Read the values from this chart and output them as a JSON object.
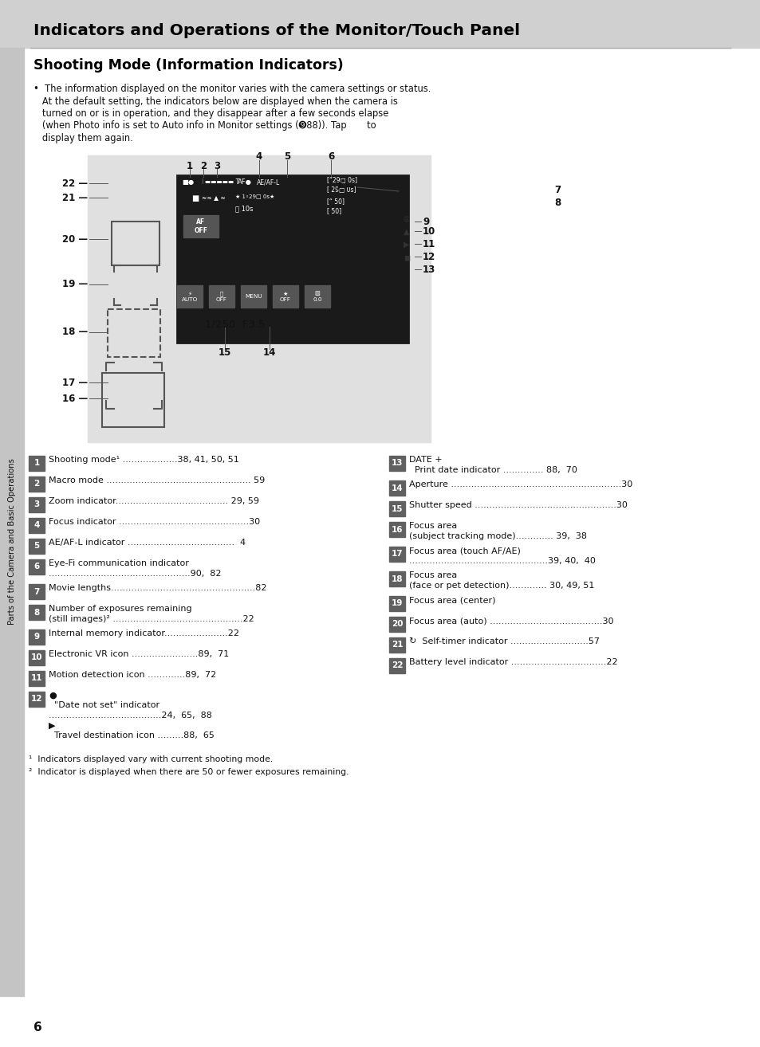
{
  "page_bg": "#ffffff",
  "header_bg": "#d0d0d0",
  "header_title": "Indicators and Operations of the Monitor/Touch Panel",
  "section_title": "Shooting Mode (Information Indicators)",
  "sidebar_text": "Parts of the Camera and Basic Operations",
  "indicator_box_bg": "#606060",
  "indicator_text_color": "#ffffff",
  "page_number": "6",
  "left_items": [
    {
      "num": "1",
      "lines": [
        "Shooting mode¹ ...................38, 41, 50, 51"
      ]
    },
    {
      "num": "2",
      "lines": [
        "Macro mode .................................................. 59"
      ]
    },
    {
      "num": "3",
      "lines": [
        "Zoom indicator....................................... 29, 59"
      ]
    },
    {
      "num": "4",
      "lines": [
        "Focus indicator .............................................30"
      ]
    },
    {
      "num": "5",
      "lines": [
        "AE/AF-L indicator .....................................  4"
      ]
    },
    {
      "num": "6",
      "lines": [
        "Eye-Fi communication indicator",
        ".................................................90,  82"
      ]
    },
    {
      "num": "7",
      "lines": [
        "Movie lengths..................................................82"
      ]
    },
    {
      "num": "8",
      "lines": [
        "Number of exposures remaining",
        "(still images)² .............................................22"
      ]
    },
    {
      "num": "9",
      "lines": [
        "Internal memory indicator......................22"
      ]
    },
    {
      "num": "10",
      "lines": [
        "Electronic VR icon .......................89,  71"
      ]
    },
    {
      "num": "11",
      "lines": [
        "Motion detection icon .............89,  72"
      ]
    },
    {
      "num": "12",
      "lines": [
        "●",
        "  \"Date not set\" indicator",
        ".......................................24,  65,  88",
        "▶",
        "  Travel destination icon .........88,  65"
      ]
    }
  ],
  "right_items": [
    {
      "num": "13",
      "lines": [
        "DATE +",
        "  Print date indicator .............. 88,  70"
      ]
    },
    {
      "num": "14",
      "lines": [
        "Aperture ...........................................................30"
      ]
    },
    {
      "num": "15",
      "lines": [
        "Shutter speed .................................................30"
      ]
    },
    {
      "num": "16",
      "lines": [
        "Focus area",
        "(subject tracking mode)............. 39,  38"
      ]
    },
    {
      "num": "17",
      "lines": [
        "Focus area (touch AF/AE)",
        "................................................39, 40,  40"
      ]
    },
    {
      "num": "18",
      "lines": [
        "Focus area",
        "(face or pet detection)............. 30, 49, 51"
      ]
    },
    {
      "num": "19",
      "lines": [
        "Focus area (center)"
      ]
    },
    {
      "num": "20",
      "lines": [
        "Focus area (auto) .......................................30"
      ]
    },
    {
      "num": "21",
      "lines": [
        "↻  Self-timer indicator ...........................57"
      ]
    },
    {
      "num": "22",
      "lines": [
        "Battery level indicator .................................22"
      ]
    }
  ]
}
